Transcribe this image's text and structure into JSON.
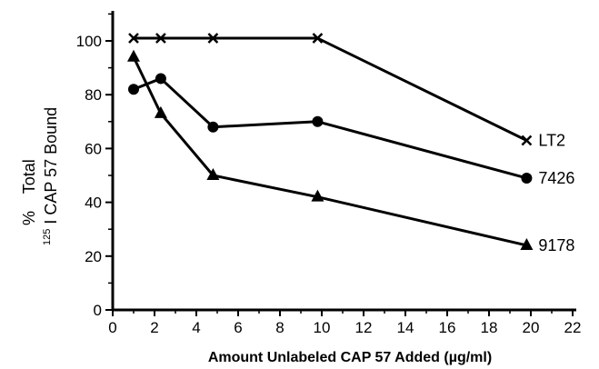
{
  "chart_data": {
    "type": "line",
    "title": "",
    "xlabel": "Amount Unlabeled CAP 57 Added (µg/ml)",
    "ylabel_line1_prefix": "%",
    "ylabel_line1_text": "Total",
    "ylabel_line2_sup": "125",
    "ylabel_line2_text": "I CAP 57 Bound",
    "xlim": [
      0,
      22
    ],
    "ylim": [
      0,
      110
    ],
    "xticks": [
      0,
      2,
      4,
      6,
      8,
      10,
      12,
      14,
      16,
      18,
      20,
      22
    ],
    "yticks": [
      0,
      20,
      40,
      60,
      80,
      100
    ],
    "grid": false,
    "series": [
      {
        "name": "LT2",
        "marker": "x",
        "points": [
          [
            1,
            101
          ],
          [
            2.3,
            101
          ],
          [
            4.8,
            101
          ],
          [
            9.8,
            101
          ],
          [
            19.8,
            63
          ]
        ]
      },
      {
        "name": "7426",
        "marker": "circle",
        "points": [
          [
            1,
            82
          ],
          [
            2.3,
            86
          ],
          [
            4.8,
            68
          ],
          [
            9.8,
            70
          ],
          [
            19.8,
            49
          ]
        ]
      },
      {
        "name": "9178",
        "marker": "triangle",
        "points": [
          [
            1,
            94
          ],
          [
            2.3,
            73
          ],
          [
            4.8,
            50
          ],
          [
            9.8,
            42
          ],
          [
            19.8,
            24
          ]
        ]
      }
    ]
  }
}
